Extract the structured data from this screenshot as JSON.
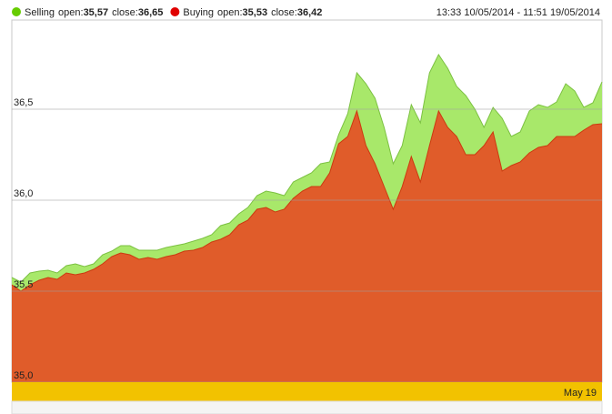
{
  "chart_data": {
    "type": "area",
    "date_range": "13:33 10/05/2014 - 11:51 19/05/2014",
    "x_band_label": "May 19",
    "legend_open_text": "open:",
    "legend_close_text": "close:",
    "ylim": [
      35,
      36.99
    ],
    "yticks": [
      {
        "value": 35,
        "label": "35,0"
      },
      {
        "value": 35.5,
        "label": "35,5"
      },
      {
        "value": 36,
        "label": "36,0"
      },
      {
        "value": 36.5,
        "label": "36,5"
      }
    ],
    "grid": true,
    "series": [
      {
        "name": "Selling",
        "open": "35,57",
        "close": "36,65",
        "color": "#a8e86a",
        "line_color": "#7cc142",
        "dot_color": "#66cc00",
        "values": [
          35.575,
          35.55,
          35.6,
          35.61,
          35.615,
          35.6,
          35.64,
          35.65,
          35.635,
          35.65,
          35.7,
          35.72,
          35.75,
          35.75,
          35.725,
          35.725,
          35.725,
          35.74,
          35.75,
          35.76,
          35.775,
          35.79,
          35.81,
          35.86,
          35.875,
          35.925,
          35.96,
          36.025,
          36.05,
          36.04,
          36.025,
          36.1,
          36.125,
          36.15,
          36.2,
          36.21,
          36.36,
          36.475,
          36.7,
          36.64,
          36.56,
          36.4,
          36.2,
          36.3,
          36.525,
          36.425,
          36.7,
          36.8,
          36.725,
          36.625,
          36.575,
          36.5,
          36.4,
          36.51,
          36.45,
          36.35,
          36.375,
          36.49,
          36.525,
          36.51,
          36.54,
          36.64,
          36.6,
          36.51,
          36.535,
          36.65
        ]
      },
      {
        "name": "Buying",
        "open": "35,53",
        "close": "36,42",
        "color": "#e05c2a",
        "line_color": "#cc3a10",
        "dot_color": "#e00000",
        "values": [
          35.535,
          35.5,
          35.535,
          35.56,
          35.575,
          35.565,
          35.6,
          35.59,
          35.6,
          35.62,
          35.65,
          35.69,
          35.71,
          35.7,
          35.675,
          35.685,
          35.675,
          35.69,
          35.7,
          35.72,
          35.725,
          35.74,
          35.77,
          35.785,
          35.81,
          35.865,
          35.89,
          35.95,
          35.96,
          35.935,
          35.95,
          36.01,
          36.05,
          36.075,
          36.075,
          36.15,
          36.31,
          36.35,
          36.49,
          36.3,
          36.2,
          36.075,
          35.95,
          36.075,
          36.24,
          36.1,
          36.3,
          36.49,
          36.4,
          36.35,
          36.25,
          36.25,
          36.3,
          36.375,
          36.16,
          36.19,
          36.21,
          36.26,
          36.29,
          36.3,
          36.35,
          36.35,
          36.35,
          36.385,
          36.415,
          36.42
        ]
      }
    ]
  }
}
